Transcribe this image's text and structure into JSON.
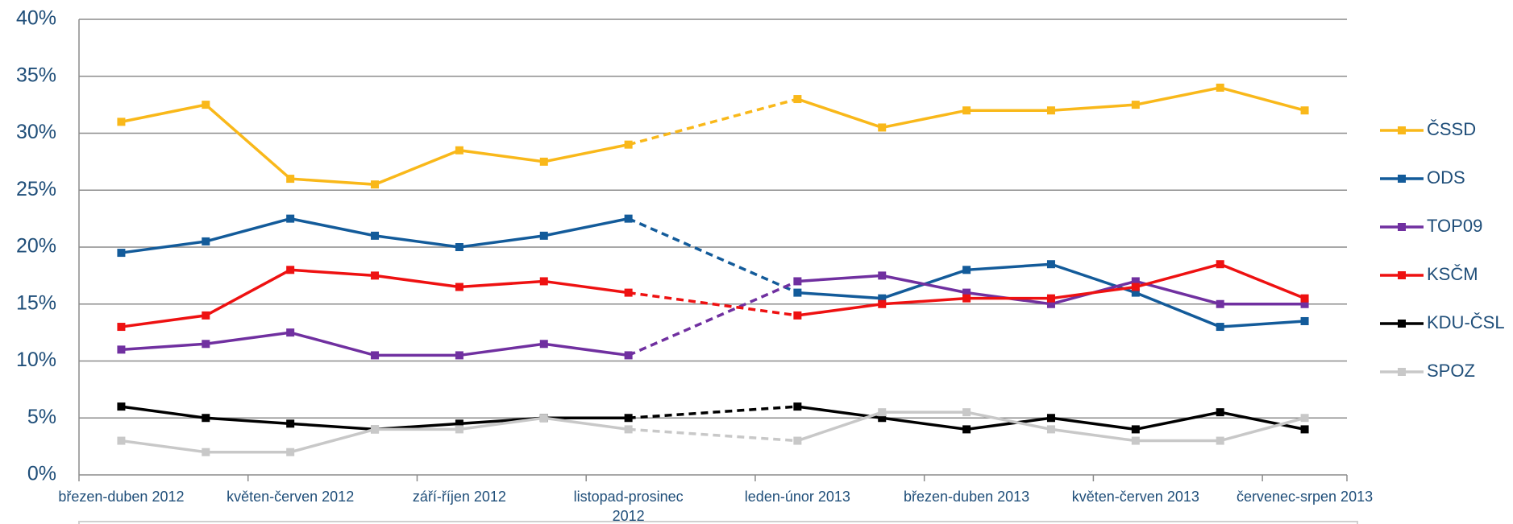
{
  "chart_data": {
    "type": "line",
    "categories": [
      "březen-duben 2012",
      null,
      "květen-červen 2012",
      null,
      "září-říjen 2012",
      null,
      "listopad-prosinec 2012",
      null,
      "leden-únor 2013",
      null,
      "březen-duben 2013",
      null,
      "květen-červen 2013",
      null,
      "červenec-srpen 2013"
    ],
    "series": [
      {
        "name": "ČSSD",
        "color": "#f9b81a",
        "values": [
          31,
          32.5,
          26,
          25.5,
          28.5,
          27.5,
          29,
          null,
          33,
          30.5,
          32,
          32,
          32.5,
          34,
          32
        ]
      },
      {
        "name": "ODS",
        "color": "#135b9a",
        "values": [
          19.5,
          20.5,
          22.5,
          21,
          20,
          21,
          22.5,
          null,
          16,
          15.5,
          18,
          18.5,
          16,
          13,
          13.5
        ]
      },
      {
        "name": "TOP09",
        "color": "#7030a0",
        "values": [
          11,
          11.5,
          12.5,
          10.5,
          10.5,
          11.5,
          10.5,
          null,
          17,
          17.5,
          16,
          15,
          17,
          15,
          15
        ]
      },
      {
        "name": "KSČM",
        "color": "#ee1111",
        "values": [
          13,
          14,
          18,
          17.5,
          16.5,
          17,
          16,
          null,
          14,
          15,
          15.5,
          15.5,
          16.5,
          18.5,
          15.5
        ]
      },
      {
        "name": "KDU-ČSL",
        "color": "#000000",
        "values": [
          6,
          5,
          4.5,
          4,
          4.5,
          5,
          5,
          null,
          6,
          5,
          4,
          5,
          4,
          5.5,
          4
        ]
      },
      {
        "name": "SPOZ",
        "color": "#c8c8c8",
        "values": [
          3,
          2,
          2,
          4,
          4,
          5,
          4,
          null,
          3,
          5.5,
          5.5,
          4,
          3,
          3,
          5
        ]
      }
    ],
    "ylim": [
      0,
      40
    ],
    "yticks": [
      {
        "value": 0,
        "label": "0%"
      },
      {
        "value": 5,
        "label": "5%"
      },
      {
        "value": 10,
        "label": "10%"
      },
      {
        "value": 15,
        "label": "15%"
      },
      {
        "value": 20,
        "label": "20%"
      },
      {
        "value": 25,
        "label": "25%"
      },
      {
        "value": 30,
        "label": "30%"
      },
      {
        "value": 35,
        "label": "35%"
      },
      {
        "value": 40,
        "label": "40%"
      }
    ],
    "grid": true,
    "legend": "right",
    "gaps": "dashed"
  }
}
